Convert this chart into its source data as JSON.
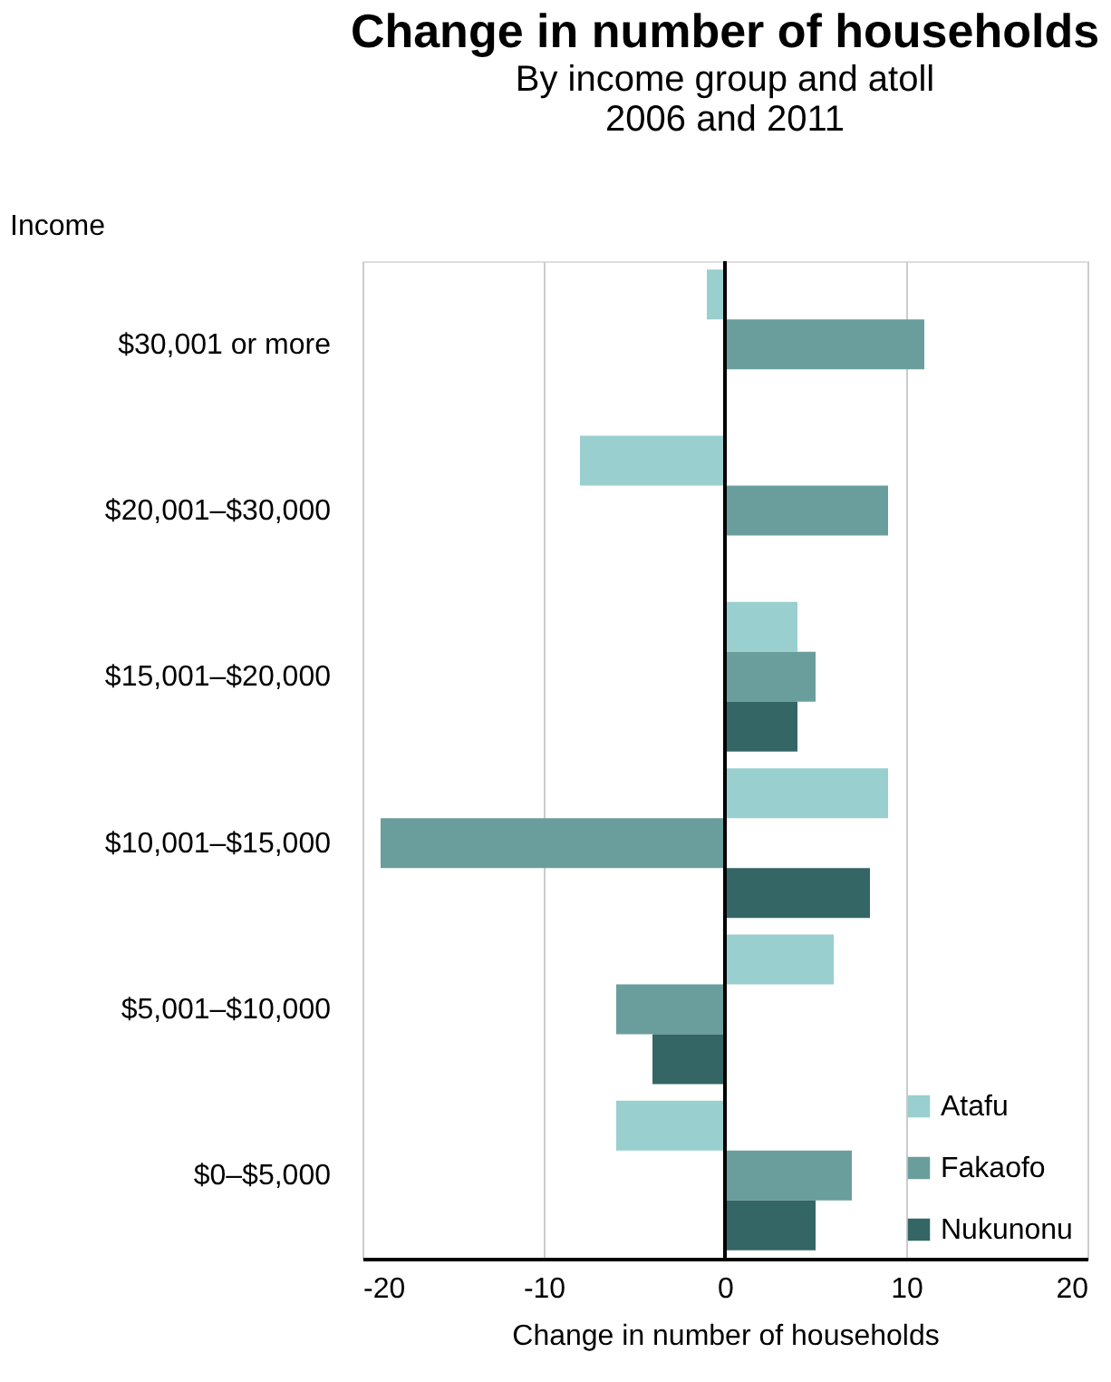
{
  "chart_data": {
    "type": "bar",
    "orientation": "horizontal",
    "title": "Change in number of households",
    "subtitle": "By income group and atoll\n2006 and 2011",
    "xlabel": "Change in number of households",
    "ylabel": "Income",
    "categories": [
      "$30,001 or more",
      "$20,001–$30,000",
      "$15,001–$20,000",
      "$10,001–$15,000",
      "$5,001–$10,000",
      "$0–$5,000"
    ],
    "series": [
      {
        "name": "Atafu",
        "color": "#99cfcf",
        "values": [
          -1,
          -8,
          4,
          9,
          6,
          -6
        ]
      },
      {
        "name": "Fakaofo",
        "color": "#6a9e9c",
        "values": [
          11,
          9,
          5,
          -19,
          -6,
          7
        ]
      },
      {
        "name": "Nukunonu",
        "color": "#336664",
        "values": [
          null,
          null,
          4,
          8,
          -4,
          5
        ]
      }
    ],
    "xlim": [
      -20,
      20
    ],
    "xticks": [
      -20,
      -10,
      0,
      10,
      20
    ],
    "grid": "x",
    "legend": "bottom right",
    "ref_lines": [
      {
        "axis": "x",
        "value": 0,
        "color": "#000000"
      }
    ]
  }
}
